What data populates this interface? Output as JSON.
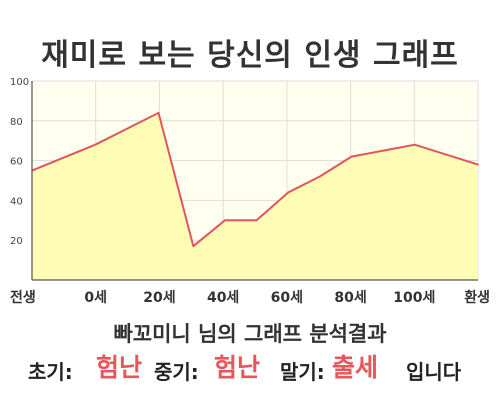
{
  "title": "재미로 보는 당신의 인생 그래프",
  "summary": "빠꼬미니 님의 그래프 분석결과",
  "verdict": {
    "early_label": "초기:",
    "early_value": "험난",
    "mid_label": "중기:",
    "mid_value": "험난",
    "late_label": "말기:",
    "late_value": "출세",
    "suffix": "입니다"
  },
  "colors": {
    "plot_bg": "#fffff0",
    "area_fill": "#fffdb5",
    "line": "#e05560",
    "grid": "#dddddd",
    "accent": "#e8555a"
  },
  "chart_data": {
    "type": "area",
    "title": "재미로 보는 당신의 인생 그래프",
    "xlabel": "",
    "ylabel": "",
    "ylim": [
      0,
      100
    ],
    "y_ticks": [
      20,
      40,
      60,
      80,
      100
    ],
    "x_tick_labels": [
      "전생",
      "0세",
      "20세",
      "40세",
      "60세",
      "80세",
      "100세",
      "환생"
    ],
    "grid": true,
    "legend": "none",
    "series": [
      {
        "x": [
          -20,
          0,
          20,
          31,
          41,
          51,
          61,
          71,
          81,
          101,
          121
        ],
        "values": [
          55,
          68,
          84,
          17,
          30,
          30,
          44,
          52,
          62,
          68,
          58
        ]
      }
    ]
  }
}
